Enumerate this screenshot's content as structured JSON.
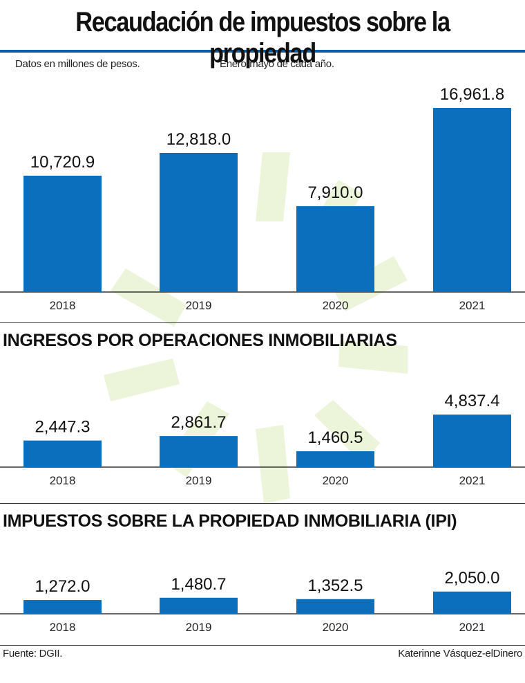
{
  "title": "Recaudación de impuestos sobre la propiedad",
  "notes": {
    "units": "Datos en millones de pesos.",
    "period": "Enero-mayo de cada año."
  },
  "colors": {
    "bar": "#0b6fbe",
    "accent": "#0b5fa8",
    "watermark": "#8fc41e"
  },
  "chart_data": [
    {
      "type": "bar",
      "title": "",
      "categories": [
        "2018",
        "2019",
        "2020",
        "2021"
      ],
      "values": [
        10720.9,
        12818.0,
        7910.0,
        16961.8
      ],
      "labels": [
        "10,720.9",
        "12,818.0",
        "7,910.0",
        "16,961.8"
      ],
      "ylim": [
        0,
        17000
      ]
    },
    {
      "type": "bar",
      "title": "INGRESOS POR OPERACIONES INMOBILIARIAS",
      "categories": [
        "2018",
        "2019",
        "2020",
        "2021"
      ],
      "values": [
        2447.3,
        2861.7,
        1460.5,
        4837.4
      ],
      "labels": [
        "2,447.3",
        "2,861.7",
        "1,460.5",
        "4,837.4"
      ],
      "ylim": [
        0,
        17000
      ]
    },
    {
      "type": "bar",
      "title": "IMPUESTOS SOBRE LA PROPIEDAD INMOBILIARIA (IPI)",
      "categories": [
        "2018",
        "2019",
        "2020",
        "2021"
      ],
      "values": [
        1272.0,
        1480.7,
        1352.5,
        2050.0
      ],
      "labels": [
        "1,272.0",
        "1,480.7",
        "1,352.5",
        "2,050.0"
      ],
      "ylim": [
        0,
        17000
      ]
    }
  ],
  "footer": {
    "source": "Fuente: DGII.",
    "credit": "Katerinne Vásquez-elDinero"
  }
}
